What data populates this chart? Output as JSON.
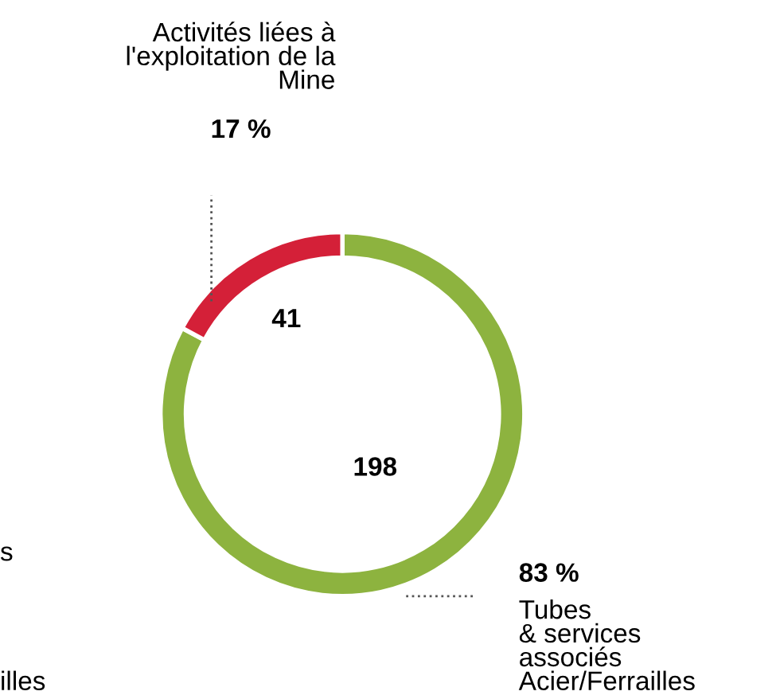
{
  "chart_data": {
    "type": "donut",
    "categories": [
      "Tubes\n& services\nassociés\nAcier/Ferrailles",
      "Activités liées à\nl'exploitation de la\nMine"
    ],
    "values": [
      198,
      41
    ],
    "colors": [
      "#8db33f",
      "#d42038"
    ],
    "data_labels": true,
    "annotations": [
      "83 %",
      "17 %",
      "s",
      "illes"
    ]
  }
}
